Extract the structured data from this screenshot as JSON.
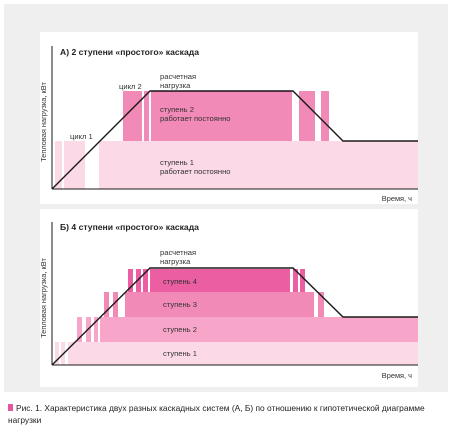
{
  "colors": {
    "stage1": "#fbd9e7",
    "stage2": "#f7a6c9",
    "stage3": "#f28ab7",
    "stage4": "#ec5ea2",
    "curve": "#1a1a1a",
    "accent": "#e8559c"
  },
  "panel_a": {
    "title": "А) 2 ступени «простого» каскада",
    "ylabel": "Тепловая нагрузка, кВт",
    "xlabel": "Время, ч",
    "label_cycle1": "цикл 1",
    "label_cycle2": "цикл 2",
    "label_load_line1": "расчетная",
    "label_load_line2": "нагрузка",
    "label_stage2_line1": "ступень 2",
    "label_stage2_line2": "работает постоянно",
    "label_stage1_line1": "ступень 1",
    "label_stage1_line2": "работает постоянно"
  },
  "panel_b": {
    "title": "Б) 4 ступени «простого» каскада",
    "ylabel": "Тепловая нагрузка, кВт",
    "xlabel": "Время, ч",
    "label_load_line1": "расчетная",
    "label_load_line2": "нагрузка",
    "label_stage4": "ступень 4",
    "label_stage3": "ступень 3",
    "label_stage2": "ступень 2",
    "label_stage1": "ступень 1"
  },
  "caption": {
    "text": "Рис. 1. Характеристика двух разных каскадных систем (А, Б) по отношению к гипотетической диаграмме нагрузки"
  }
}
